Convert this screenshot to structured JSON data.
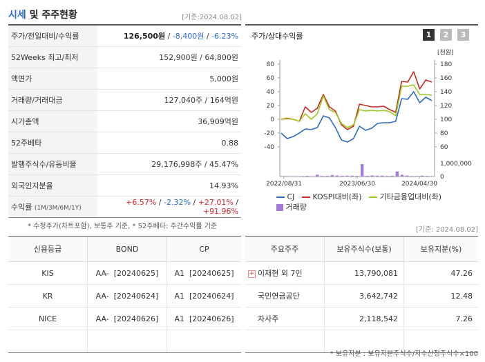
{
  "header": {
    "title_accent": "시세",
    "title_rest": "및 주주현황",
    "base_date": "[기준:2024.08.02]"
  },
  "snapshot": {
    "rows": [
      {
        "label": "주가/전일대비/수익률",
        "price": "126,500원",
        "sep1": " / ",
        "change": "-8,400원",
        "sep2": " / ",
        "rate": "-6.23%"
      },
      {
        "label": "52Weeks 최고/최저",
        "value": "152,900원 / 64,800원"
      },
      {
        "label": "액면가",
        "value": "5,000원"
      },
      {
        "label": "거래량/거래대금",
        "value": "127,040주 / 164억원"
      },
      {
        "label": "시가총액",
        "value": "36,909억원"
      },
      {
        "label": "52주베타",
        "value": "0.88"
      },
      {
        "label": "발행주식수/유동비율",
        "value": "29,176,998주 / 45.47%"
      },
      {
        "label": "외국인지분율",
        "value": "14.93%"
      }
    ],
    "returns": {
      "label": "수익률",
      "periods": "(1M/3M/6M/1Y)",
      "v1": "+6.57%",
      "v2": "-2.32%",
      "v3": "+27.01%",
      "v4": "+91.96%",
      "sep": " / "
    },
    "note": "* 수정주가(차트포함), 보통주 기준, * 52주베타: 주간수익률 기준"
  },
  "chart_panel": {
    "title": "주가/상대수익률",
    "pages": [
      "1",
      "2",
      "3"
    ],
    "active_page": "1"
  },
  "chart_data": {
    "type": "line",
    "left_axis": {
      "ticks": [
        "80",
        "60",
        "40",
        "20",
        "0",
        "-20",
        "-40"
      ],
      "ylim": [
        -40,
        80
      ]
    },
    "right_axis": {
      "unit": "[천원]",
      "ticks": [
        "180",
        "160",
        "140",
        "120",
        "100",
        "80",
        "60"
      ],
      "ylim": [
        60,
        180
      ]
    },
    "volume_axis": {
      "ticks": [
        "1,000,000",
        "0"
      ]
    },
    "x_labels": [
      "2022/08/31",
      "2023/06/30",
      "2024/04/30"
    ],
    "series": [
      {
        "name": "CJ",
        "color": "#2a6ac8",
        "values": [
          -20,
          -28,
          -25,
          -20,
          -14,
          -15,
          -12,
          5,
          2,
          -12,
          -30,
          -33,
          -28,
          -10,
          -16,
          -13,
          -6,
          -5,
          -5,
          -3,
          30,
          29,
          40,
          24,
          32,
          27
        ]
      },
      {
        "name": "KOSPI대비(좌)",
        "color": "#c8281e",
        "values": [
          0,
          1,
          0,
          -3,
          18,
          10,
          16,
          36,
          18,
          12,
          -8,
          -15,
          -10,
          22,
          20,
          18,
          18,
          19,
          14,
          10,
          55,
          54,
          69,
          44,
          57,
          54
        ]
      },
      {
        "name": "기타금융업대비(좌)",
        "color": "#9bc81e",
        "values": [
          0,
          2,
          0,
          -3,
          8,
          0,
          8,
          34,
          14,
          10,
          -6,
          -12,
          -8,
          14,
          12,
          13,
          12,
          13,
          11,
          5,
          48,
          48,
          50,
          36,
          36,
          35
        ]
      }
    ],
    "volume": {
      "name": "거래량",
      "color": "#a27ad6",
      "values": [
        0.06,
        0.04,
        0.05,
        0.05,
        0.08,
        0.12,
        0.06,
        0.3,
        0.1,
        0.12,
        0.24,
        0.18,
        0.12,
        0.15,
        0.14,
        0.1,
        2.1,
        0.12,
        0.18,
        0.14,
        0.16,
        0.1,
        0.12,
        0.85,
        0.3,
        0.15,
        0.1,
        0.08,
        0.14,
        0.1,
        0.05
      ]
    }
  },
  "ratings": {
    "headers": [
      "신용등급",
      "BOND",
      "CP"
    ],
    "rows": [
      {
        "agency": "KIS",
        "bond": "AA-  [20240625]",
        "cp": "A1  [20240625]"
      },
      {
        "agency": "KR",
        "bond": "AA-  [20240624]",
        "cp": "A1  [20240624]"
      },
      {
        "agency": "NICE",
        "bond": "AA-  [20240626]",
        "cp": "A1  [20240626]"
      }
    ]
  },
  "holders": {
    "base_date": "[기준: 2024.08.02]",
    "headers": [
      "주요주주",
      "보유주식수(보통)",
      "보유지분(%)"
    ],
    "rows": [
      {
        "name": "이재현 외 7인",
        "shares": "13,790,081",
        "pct": "47.26",
        "expand": "+"
      },
      {
        "name": "국민연금공단",
        "shares": "3,642,742",
        "pct": "12.48"
      },
      {
        "name": "자사주",
        "shares": "2,118,542",
        "pct": "7.26"
      }
    ],
    "footnote": "* 보유지분 : 보유지분주식수/지수산정주식수×100"
  }
}
